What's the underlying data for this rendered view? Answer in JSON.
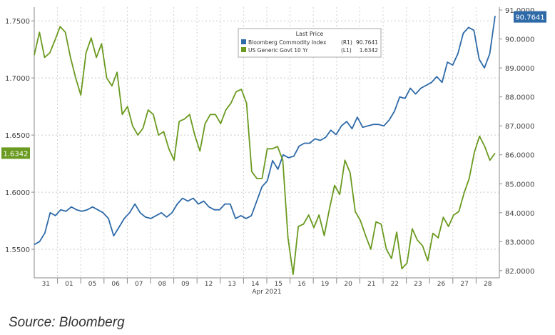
{
  "chart_data": {
    "type": "line",
    "legend": {
      "title": "Last Price",
      "placement": "top-center",
      "entries": [
        {
          "label": "Bloomberg Commodity Index",
          "axis": "(R1)",
          "value": "90.7641"
        },
        {
          "label": "US Generic Govt 10 Yr",
          "axis": "(L1)",
          "value": "1.6342"
        }
      ]
    },
    "x_ticks": [
      "31",
      "01",
      "05",
      "06",
      "07",
      "08",
      "09",
      "12",
      "13",
      "14",
      "15",
      "16",
      "19",
      "20",
      "21",
      "22",
      "23",
      "26",
      "27",
      "28"
    ],
    "x_month_label": "Apr 2021",
    "left_axis": {
      "range": [
        1.525,
        1.762
      ],
      "ticks": [
        "1.5500",
        "1.6000",
        "1.6500",
        "1.7000",
        "1.7500"
      ],
      "last_badge": "1.6342"
    },
    "right_axis": {
      "range": [
        81.75,
        91.1
      ],
      "ticks": [
        "82.0000",
        "83.0000",
        "84.0000",
        "85.0000",
        "86.0000",
        "87.0000",
        "88.0000",
        "89.0000",
        "90.0000",
        "91.0000"
      ],
      "last_badge": "90.7641"
    },
    "grid": true,
    "series": [
      {
        "name": "Bloomberg Commodity Index",
        "axis": "right",
        "color": "#2e6aa8",
        "values": [
          82.9,
          83.0,
          83.3,
          84.0,
          83.9,
          84.1,
          84.05,
          84.2,
          84.1,
          84.05,
          84.1,
          84.2,
          84.1,
          84.0,
          83.8,
          83.2,
          83.5,
          83.8,
          84.0,
          84.3,
          84.0,
          83.85,
          83.8,
          83.9,
          84.0,
          83.85,
          84.0,
          84.3,
          84.5,
          84.4,
          84.5,
          84.3,
          84.4,
          84.2,
          84.1,
          84.1,
          84.3,
          84.3,
          83.8,
          83.9,
          83.8,
          83.9,
          84.4,
          84.9,
          85.1,
          85.8,
          85.5,
          86.0,
          85.9,
          85.95,
          86.3,
          86.4,
          86.4,
          86.55,
          86.5,
          86.6,
          86.85,
          86.7,
          87.0,
          87.15,
          86.9,
          87.3,
          86.95,
          87.0,
          87.05,
          87.05,
          87.0,
          87.2,
          87.5,
          88.0,
          87.95,
          88.3,
          88.1,
          88.3,
          88.4,
          88.5,
          88.7,
          88.5,
          89.2,
          89.1,
          89.5,
          90.2,
          90.4,
          90.3,
          89.3,
          89.0,
          89.5,
          90.8
        ],
        "last": 90.7641
      },
      {
        "name": "US Generic Govt 10 Yr",
        "axis": "left",
        "color": "#6a9a1f",
        "values": [
          1.72,
          1.74,
          1.718,
          1.722,
          1.733,
          1.745,
          1.74,
          1.718,
          1.7,
          1.685,
          1.722,
          1.735,
          1.718,
          1.73,
          1.7,
          1.693,
          1.705,
          1.668,
          1.675,
          1.658,
          1.65,
          1.656,
          1.672,
          1.668,
          1.65,
          1.653,
          1.638,
          1.628,
          1.662,
          1.664,
          1.668,
          1.65,
          1.636,
          1.66,
          1.668,
          1.668,
          1.66,
          1.672,
          1.678,
          1.688,
          1.69,
          1.678,
          1.618,
          1.612,
          1.612,
          1.638,
          1.638,
          1.64,
          1.628,
          1.56,
          1.528,
          1.57,
          1.572,
          1.58,
          1.569,
          1.58,
          1.562,
          1.585,
          1.606,
          1.598,
          1.628,
          1.617,
          1.583,
          1.575,
          1.562,
          1.55,
          1.574,
          1.572,
          1.55,
          1.542,
          1.565,
          1.533,
          1.538,
          1.568,
          1.558,
          1.553,
          1.54,
          1.564,
          1.56,
          1.578,
          1.57,
          1.58,
          1.583,
          1.599,
          1.612,
          1.635,
          1.649,
          1.64,
          1.628,
          1.6342
        ],
        "last": 1.6342
      }
    ]
  },
  "source_text": "Source: Bloomberg"
}
